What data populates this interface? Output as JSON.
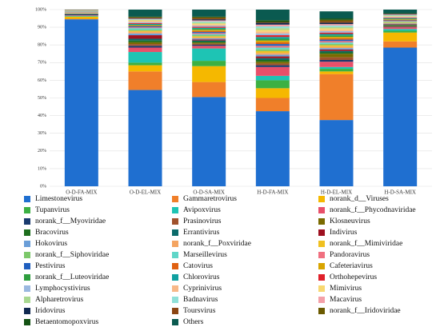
{
  "chart_data": {
    "type": "stacked_bar",
    "categories": [
      "O-D-FA-MIX",
      "O-D-EL-MIX",
      "O-D-SA-MIX",
      "H-D-FA-MIX",
      "H-D-EL-MIX",
      "H-D-SA-MIX"
    ],
    "ylim": [
      0,
      100
    ],
    "yticks": [
      {
        "value": 0,
        "label": "0%"
      },
      {
        "value": 10,
        "label": "10%"
      },
      {
        "value": 20,
        "label": "20%"
      },
      {
        "value": 30,
        "label": "30%"
      },
      {
        "value": 40,
        "label": "40%"
      },
      {
        "value": 50,
        "label": "50%"
      },
      {
        "value": 60,
        "label": "60%"
      },
      {
        "value": 70,
        "label": "70%"
      },
      {
        "value": 80,
        "label": "80%"
      },
      {
        "value": 90,
        "label": "90%"
      },
      {
        "value": 100,
        "label": "100%"
      }
    ],
    "grid": true,
    "legend": "bottom",
    "series": [
      {
        "name": "Limestonevirus",
        "color": "#1f6fd0",
        "values": [
          94.5,
          54.5,
          50.5,
          42.5,
          37.5,
          78.5
        ]
      },
      {
        "name": "Gammaretrovirus",
        "color": "#f07f2a",
        "values": [
          0.3,
          10.5,
          8.5,
          7.5,
          26,
          3.5
        ]
      },
      {
        "name": "norank_d__Viruses",
        "color": "#f5b800",
        "values": [
          1.2,
          3.5,
          9,
          5.5,
          1.5,
          5
        ]
      },
      {
        "name": "Tupanvirus",
        "color": "#3cb043",
        "values": [
          0.2,
          1.5,
          3,
          4.5,
          1.5,
          1
        ]
      },
      {
        "name": "Avipoxvirus",
        "color": "#1ec4b4",
        "values": [
          0.3,
          6,
          7,
          2.5,
          1,
          1
        ]
      },
      {
        "name": "norank_f__Phycodnaviridae",
        "color": "#e8506a",
        "values": [
          0.3,
          2.5,
          1.5,
          5,
          3,
          1
        ]
      },
      {
        "name": "norank_f__Myoviridae",
        "color": "#1a3a6e",
        "values": [
          0.5,
          1,
          0.6,
          1,
          1,
          0.3
        ]
      },
      {
        "name": "Prasinovirus",
        "color": "#a0522d",
        "values": [
          0.1,
          1,
          0.6,
          1,
          1.5,
          0.3
        ]
      },
      {
        "name": "Klosneuvirus",
        "color": "#7a6a00",
        "values": [
          0.1,
          1,
          0.6,
          1,
          2,
          0.3
        ]
      },
      {
        "name": "Bracovirus",
        "color": "#1e6e1e",
        "values": [
          0.1,
          1,
          0.6,
          1,
          0.8,
          0.3
        ]
      },
      {
        "name": "Errantivirus",
        "color": "#0b6b6b",
        "values": [
          0.1,
          1,
          0.6,
          1,
          0.8,
          0.3
        ]
      },
      {
        "name": "Indivirus",
        "color": "#9e1020",
        "values": [
          0.1,
          2,
          0.6,
          1,
          0.8,
          0.3
        ]
      },
      {
        "name": "Hokovirus",
        "color": "#6a9ed8",
        "values": [
          0.1,
          1,
          0.6,
          1,
          0.8,
          0.3
        ]
      },
      {
        "name": "norank_f__Poxviridae",
        "color": "#f4a460",
        "values": [
          0.1,
          1,
          0.6,
          1,
          0.8,
          0.3
        ]
      },
      {
        "name": "norank_f__Mimiviridae",
        "color": "#f0c020",
        "values": [
          0.1,
          0.5,
          0.6,
          1,
          0.8,
          0.3
        ]
      },
      {
        "name": "norank_f__Siphoviridae",
        "color": "#7cc86a",
        "values": [
          0.1,
          0.5,
          0.6,
          1,
          0.8,
          0.3
        ]
      },
      {
        "name": "Marseillevirus",
        "color": "#5fd6c8",
        "values": [
          0.1,
          1,
          0.6,
          1,
          0.8,
          0.3
        ]
      },
      {
        "name": "Pandoravirus",
        "color": "#f07080",
        "values": [
          0.1,
          0.5,
          0.6,
          1,
          0.8,
          0.3
        ]
      },
      {
        "name": "Pestivirus",
        "color": "#1f5fbf",
        "values": [
          0.1,
          0.5,
          0.6,
          1,
          0.8,
          0.3
        ]
      },
      {
        "name": "Catovirus",
        "color": "#e06010",
        "values": [
          0.1,
          0.3,
          0.6,
          1,
          0.8,
          0.3
        ]
      },
      {
        "name": "Cafeteriavirus",
        "color": "#d8a400",
        "values": [
          0.1,
          0.3,
          0.6,
          1,
          0.8,
          0.3
        ]
      },
      {
        "name": "norank_f__Luteoviridae",
        "color": "#2e9e3e",
        "values": [
          0.1,
          0.3,
          0.6,
          1,
          0.8,
          0.3
        ]
      },
      {
        "name": "Chlorovirus",
        "color": "#10a0a0",
        "values": [
          0.1,
          0.5,
          0.6,
          1,
          0.8,
          0.3
        ]
      },
      {
        "name": "Orthohepevirus",
        "color": "#e0202a",
        "values": [
          0.1,
          0.5,
          0.6,
          1,
          0.8,
          0.3
        ]
      },
      {
        "name": "Lymphocystivirus",
        "color": "#9ab8e0",
        "values": [
          0.1,
          0.5,
          0.6,
          1,
          0.8,
          0.3
        ]
      },
      {
        "name": "Cyprinivirus",
        "color": "#f8b888",
        "values": [
          0.1,
          0.5,
          0.6,
          1,
          0.8,
          0.3
        ]
      },
      {
        "name": "Mimivirus",
        "color": "#f8d870",
        "values": [
          0.1,
          0.5,
          0.6,
          1,
          0.8,
          0.3
        ]
      },
      {
        "name": "Alpharetrovirus",
        "color": "#a8d890",
        "values": [
          0.1,
          0.3,
          0.6,
          1,
          0.8,
          0.3
        ]
      },
      {
        "name": "Badnavirus",
        "color": "#90e0d8",
        "values": [
          0.1,
          0.3,
          0.6,
          1,
          0.8,
          0.3
        ]
      },
      {
        "name": "Macavirus",
        "color": "#f4a0a8",
        "values": [
          0.1,
          0.3,
          0.6,
          1,
          0.8,
          0.3
        ]
      },
      {
        "name": "Iridovirus",
        "color": "#102850",
        "values": [
          0.1,
          0.3,
          0.6,
          1,
          0.8,
          0.3
        ]
      },
      {
        "name": "Toursvirus",
        "color": "#8b4513",
        "values": [
          0.1,
          0.3,
          0.6,
          0.25,
          0.8,
          0.1
        ]
      },
      {
        "name": "norank_f__Iridoviridae",
        "color": "#6b5a00",
        "values": [
          0.1,
          0.3,
          0.6,
          0.25,
          0.8,
          0.1
        ]
      },
      {
        "name": "Betaentomopoxvirus",
        "color": "#145214",
        "values": [
          0.1,
          0.3,
          0.3,
          1,
          0.8,
          0.3
        ]
      },
      {
        "name": "Others",
        "color": "#0a5a50",
        "values": [
          0,
          4,
          4,
          6,
          4,
          2
        ]
      }
    ]
  }
}
